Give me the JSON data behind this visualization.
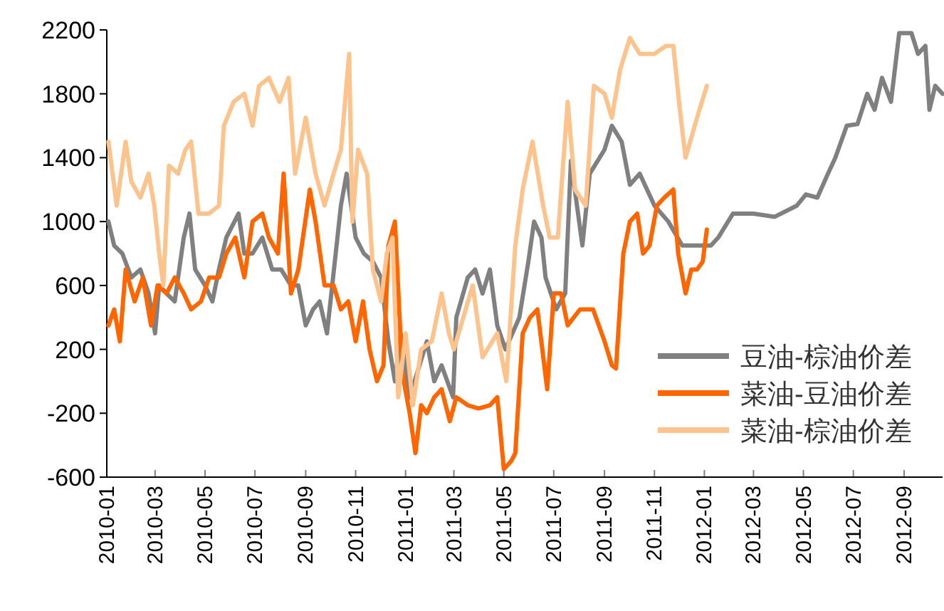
{
  "chart_data": {
    "type": "line",
    "legend": "bottom right",
    "xlim": [
      "2010-01-01",
      "2012-10-18"
    ],
    "ylim": [
      -600,
      2200
    ],
    "xticks": [
      "2010-01",
      "2010-03",
      "2010-05",
      "2010-07",
      "2010-09",
      "2010-11",
      "2011-01",
      "2011-03",
      "2011-05",
      "2011-07",
      "2011-09",
      "2011-11",
      "2012-01",
      "2012-03",
      "2012-05",
      "2012-07",
      "2012-09"
    ],
    "yticks": [
      -600,
      -200,
      200,
      600,
      1000,
      1400,
      1800,
      2200
    ],
    "series": [
      {
        "name": "豆油-棕油价差",
        "color": "#808080",
        "x": [
          "2010-01-03",
          "2010-01-10",
          "2010-01-20",
          "2010-01-31",
          "2010-02-11",
          "2010-02-21",
          "2010-03-01",
          "2010-03-06",
          "2010-03-15",
          "2010-03-25",
          "2010-04-05",
          "2010-04-12",
          "2010-04-19",
          "2010-05-01",
          "2010-05-10",
          "2010-05-18",
          "2010-05-27",
          "2010-06-11",
          "2010-06-18",
          "2010-06-28",
          "2010-07-10",
          "2010-07-22",
          "2010-08-02",
          "2010-08-14",
          "2010-08-23",
          "2010-09-01",
          "2010-09-10",
          "2010-09-18",
          "2010-09-27",
          "2010-10-14",
          "2010-10-21",
          "2010-11-01",
          "2010-11-11",
          "2010-11-22",
          "2010-12-02",
          "2010-12-11",
          "2010-12-19",
          "2010-12-26",
          "2011-01-06",
          "2011-01-18",
          "2011-01-27",
          "2011-02-05",
          "2011-02-14",
          "2011-02-28",
          "2011-03-04",
          "2011-03-18",
          "2011-03-27",
          "2011-04-05",
          "2011-04-14",
          "2011-04-23",
          "2011-05-03",
          "2011-05-20",
          "2011-05-31",
          "2011-06-07",
          "2011-06-16",
          "2011-06-21",
          "2011-07-04",
          "2011-07-15",
          "2011-07-22",
          "2011-08-05",
          "2011-08-14",
          "2011-09-01",
          "2011-09-10",
          "2011-09-22",
          "2011-10-02",
          "2011-10-14",
          "2011-11-01",
          "2011-11-18",
          "2011-12-05",
          "2011-12-18",
          "2012-01-09",
          "2012-01-18",
          "2012-02-05",
          "2012-03-01",
          "2012-03-27",
          "2012-04-23",
          "2012-05-04",
          "2012-05-18",
          "2012-05-31",
          "2012-06-09",
          "2012-06-23",
          "2012-07-06",
          "2012-07-18",
          "2012-07-27",
          "2012-08-05",
          "2012-08-16",
          "2012-08-26",
          "2012-09-10",
          "2012-09-18",
          "2012-09-27",
          "2012-10-02",
          "2012-10-09",
          "2012-10-18"
        ],
        "values": [
          1000,
          850,
          800,
          650,
          700,
          550,
          300,
          600,
          550,
          500,
          900,
          1050,
          700,
          600,
          500,
          700,
          900,
          1050,
          800,
          800,
          900,
          700,
          700,
          600,
          600,
          350,
          450,
          500,
          300,
          1100,
          1300,
          900,
          800,
          750,
          650,
          250,
          0,
          300,
          -100,
          100,
          250,
          0,
          100,
          -100,
          400,
          650,
          700,
          550,
          700,
          350,
          200,
          400,
          750,
          1000,
          900,
          650,
          450,
          550,
          1380,
          850,
          1300,
          1450,
          1600,
          1500,
          1230,
          1300,
          1100,
          1000,
          850,
          850,
          850,
          900,
          1050,
          1050,
          1030,
          1100,
          1170,
          1150,
          1300,
          1400,
          1600,
          1610,
          1800,
          1700,
          1900,
          1750,
          2180,
          2180,
          2050,
          2100,
          1700,
          1850,
          1800
        ]
      },
      {
        "name": "菜油-豆油价差",
        "color": "#ff6600",
        "x": [
          "2010-01-03",
          "2010-01-10",
          "2010-01-17",
          "2010-01-24",
          "2010-02-04",
          "2010-02-14",
          "2010-02-24",
          "2010-03-04",
          "2010-03-15",
          "2010-03-25",
          "2010-04-05",
          "2010-04-14",
          "2010-04-26",
          "2010-05-06",
          "2010-05-18",
          "2010-05-27",
          "2010-06-07",
          "2010-06-18",
          "2010-06-28",
          "2010-07-10",
          "2010-07-18",
          "2010-07-29",
          "2010-08-05",
          "2010-08-14",
          "2010-08-23",
          "2010-09-06",
          "2010-09-13",
          "2010-09-24",
          "2010-10-05",
          "2010-10-14",
          "2010-10-23",
          "2010-11-01",
          "2010-11-10",
          "2010-11-18",
          "2010-11-27",
          "2010-12-05",
          "2010-12-11",
          "2010-12-19",
          "2010-12-28",
          "2011-01-06",
          "2011-01-13",
          "2011-01-20",
          "2011-01-27",
          "2011-02-05",
          "2011-02-14",
          "2011-02-24",
          "2011-03-04",
          "2011-03-18",
          "2011-03-31",
          "2011-04-14",
          "2011-04-23",
          "2011-05-01",
          "2011-05-10",
          "2011-05-15",
          "2011-05-24",
          "2011-06-02",
          "2011-06-11",
          "2011-06-23",
          "2011-07-01",
          "2011-07-10",
          "2011-07-18",
          "2011-08-02",
          "2011-08-18",
          "2011-09-01",
          "2011-09-10",
          "2011-09-15",
          "2011-09-24",
          "2011-10-02",
          "2011-10-11",
          "2011-10-18",
          "2011-10-26",
          "2011-11-04",
          "2011-11-13",
          "2011-11-24",
          "2011-11-30",
          "2011-12-09",
          "2011-12-16",
          "2011-12-23",
          "2011-12-30",
          "2012-01-04"
        ],
        "values": [
          350,
          450,
          250,
          700,
          500,
          650,
          350,
          600,
          550,
          650,
          550,
          450,
          500,
          650,
          650,
          800,
          900,
          650,
          1000,
          1050,
          900,
          800,
          1300,
          550,
          700,
          1200,
          1000,
          600,
          600,
          450,
          500,
          250,
          500,
          200,
          0,
          100,
          850,
          1000,
          50,
          -200,
          -450,
          -150,
          -200,
          -100,
          -50,
          -250,
          -100,
          -150,
          -170,
          -150,
          -100,
          -550,
          -500,
          -450,
          300,
          400,
          450,
          -50,
          550,
          550,
          350,
          450,
          450,
          250,
          100,
          80,
          800,
          1000,
          1050,
          800,
          850,
          1100,
          1150,
          1200,
          800,
          550,
          700,
          700,
          750,
          950
        ]
      },
      {
        "name": "菜油-棕油价差",
        "color": "#fcc48c",
        "x": [
          "2010-01-03",
          "2010-01-13",
          "2010-01-24",
          "2010-01-31",
          "2010-02-11",
          "2010-02-21",
          "2010-02-28",
          "2010-03-06",
          "2010-03-11",
          "2010-03-18",
          "2010-03-29",
          "2010-04-07",
          "2010-04-14",
          "2010-04-23",
          "2010-05-06",
          "2010-05-18",
          "2010-05-24",
          "2010-06-05",
          "2010-06-18",
          "2010-06-28",
          "2010-07-06",
          "2010-07-18",
          "2010-07-31",
          "2010-08-11",
          "2010-08-19",
          "2010-09-01",
          "2010-09-13",
          "2010-09-24",
          "2010-10-05",
          "2010-10-14",
          "2010-10-24",
          "2010-10-28",
          "2010-11-04",
          "2010-11-15",
          "2010-11-22",
          "2010-12-02",
          "2010-12-09",
          "2010-12-16",
          "2010-12-23",
          "2011-01-01",
          "2011-01-10",
          "2011-01-20",
          "2011-02-02",
          "2011-02-14",
          "2011-02-23",
          "2011-03-01",
          "2011-03-24",
          "2011-04-05",
          "2011-04-23",
          "2011-05-04",
          "2011-05-15",
          "2011-05-24",
          "2011-06-05",
          "2011-06-18",
          "2011-06-26",
          "2011-07-06",
          "2011-07-18",
          "2011-07-27",
          "2011-08-09",
          "2011-08-19",
          "2011-09-01",
          "2011-09-10",
          "2011-09-20",
          "2011-10-02",
          "2011-10-14",
          "2011-11-01",
          "2011-11-15",
          "2011-11-24",
          "2011-12-02",
          "2011-12-09",
          "2011-12-23",
          "2012-01-04"
        ],
        "values": [
          1500,
          1100,
          1500,
          1250,
          1150,
          1300,
          1100,
          800,
          600,
          1350,
          1300,
          1450,
          1500,
          1050,
          1050,
          1100,
          1600,
          1750,
          1800,
          1600,
          1850,
          1900,
          1750,
          1900,
          1300,
          1650,
          1300,
          1100,
          1300,
          1450,
          2050,
          1000,
          1450,
          1300,
          700,
          500,
          800,
          900,
          -100,
          300,
          -150,
          200,
          250,
          550,
          300,
          200,
          600,
          150,
          300,
          0,
          850,
          1200,
          1500,
          1100,
          900,
          900,
          1750,
          1200,
          1100,
          1850,
          1800,
          1650,
          1950,
          2150,
          2050,
          2050,
          2100,
          2100,
          1700,
          1400,
          1650,
          1850
        ]
      }
    ]
  }
}
